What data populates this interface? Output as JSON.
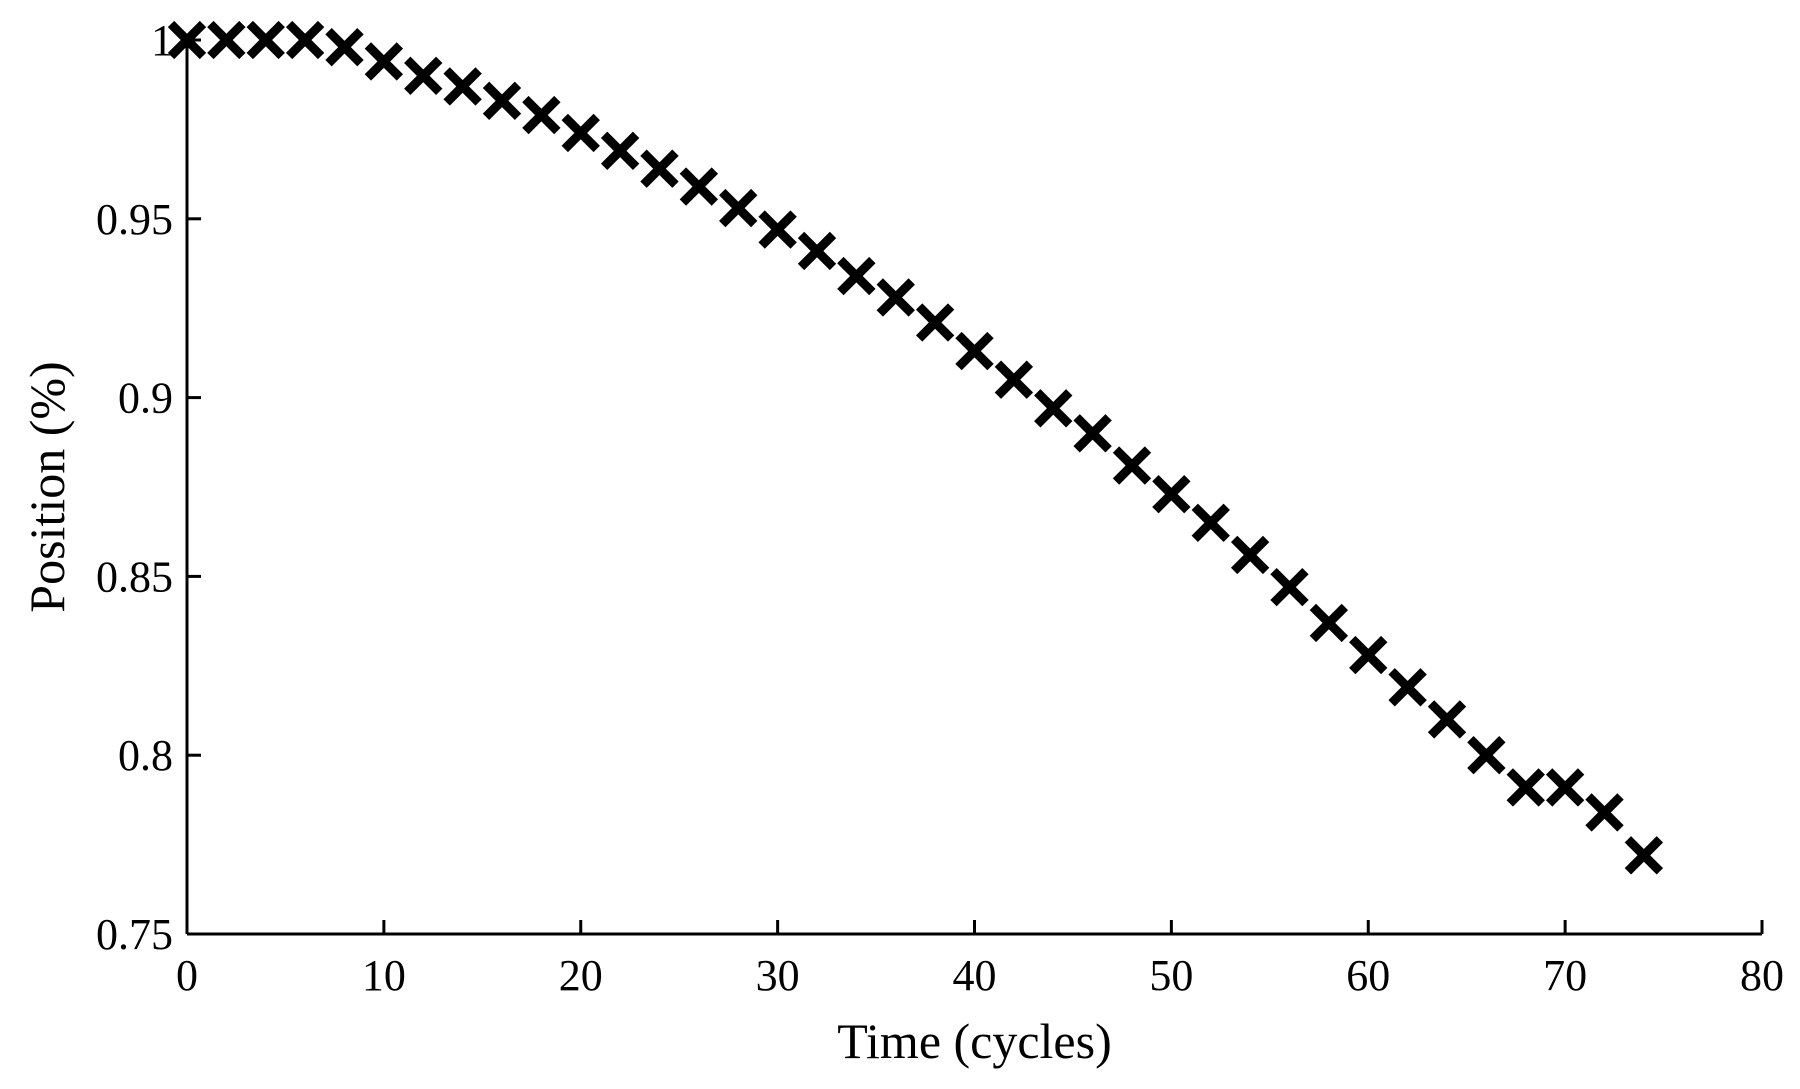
{
  "chart_data": {
    "type": "scatter",
    "title": "",
    "xlabel": "Time (cycles)",
    "ylabel": "Position (%)",
    "xlim": [
      0,
      80
    ],
    "ylim": [
      0.75,
      1
    ],
    "x_ticks": [
      "0",
      "10",
      "20",
      "30",
      "40",
      "50",
      "60",
      "70",
      "80"
    ],
    "y_ticks": [
      "0.75",
      "0.8",
      "0.85",
      "0.9",
      "0.95",
      "1"
    ],
    "x_tick_values": [
      0,
      10,
      20,
      30,
      40,
      50,
      60,
      70,
      80
    ],
    "y_tick_values": [
      0.75,
      0.8,
      0.85,
      0.9,
      0.95,
      1
    ],
    "grid": false,
    "legend": "none",
    "marker": "x",
    "marker_color": "#000000",
    "series": [
      {
        "x": [
          0,
          2,
          4,
          6,
          8,
          10,
          12,
          14,
          16,
          18,
          20,
          22,
          24,
          26,
          28,
          30,
          32,
          34,
          36,
          38,
          40,
          42,
          44,
          46,
          48,
          50,
          52,
          54,
          56,
          58,
          60,
          62,
          64,
          66,
          68,
          70,
          72,
          74
        ],
        "y": [
          1.0,
          1.0,
          1.0,
          1.0,
          0.998,
          0.994,
          0.99,
          0.987,
          0.983,
          0.979,
          0.974,
          0.969,
          0.964,
          0.959,
          0.953,
          0.947,
          0.941,
          0.934,
          0.928,
          0.921,
          0.913,
          0.905,
          0.897,
          0.89,
          0.881,
          0.873,
          0.865,
          0.856,
          0.847,
          0.837,
          0.828,
          0.819,
          0.81,
          0.8,
          0.791,
          0.791,
          0.784,
          0.772
        ]
      }
    ]
  }
}
